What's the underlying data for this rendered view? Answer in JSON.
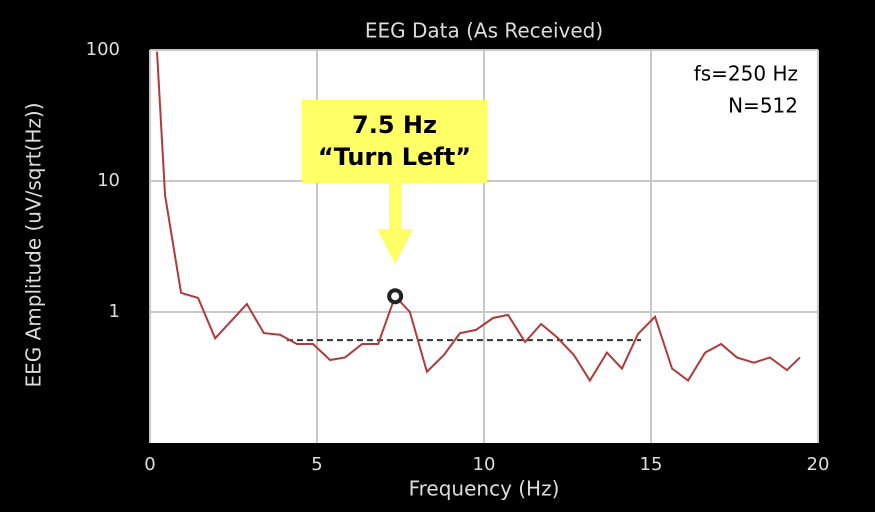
{
  "chart_data": {
    "type": "line",
    "title": "EEG Data (As Received)",
    "xlabel": "Frequency (Hz)",
    "ylabel": "EEG Amplitude (uV/sqrt(Hz))",
    "annotations": [
      "fs=250 Hz",
      "N=512"
    ],
    "callout": {
      "lines": [
        "7.5 Hz",
        "“Turn Left”"
      ],
      "color": "#ffff66"
    },
    "x": [
      0.21,
      0.45,
      0.93,
      1.44,
      1.95,
      2.9,
      3.41,
      3.89,
      4.4,
      4.88,
      5.39,
      5.84,
      6.35,
      6.83,
      7.34,
      7.78,
      8.29,
      8.8,
      9.28,
      9.76,
      10.27,
      10.72,
      11.23,
      11.71,
      12.19,
      12.69,
      13.17,
      13.68,
      14.13,
      14.61,
      15.12,
      15.63,
      16.11,
      16.62,
      17.1,
      17.57,
      18.08,
      18.56,
      19.07,
      19.46
    ],
    "series": [
      {
        "color": "#b03a3a",
        "values": [
          97,
          7.8,
          1.4,
          1.28,
          0.63,
          1.15,
          0.69,
          0.67,
          0.57,
          0.57,
          0.43,
          0.45,
          0.57,
          0.57,
          1.32,
          1.0,
          0.35,
          0.47,
          0.69,
          0.73,
          0.9,
          0.95,
          0.59,
          0.81,
          0.64,
          0.47,
          0.3,
          0.49,
          0.37,
          0.68,
          0.92,
          0.37,
          0.3,
          0.49,
          0.57,
          0.45,
          0.41,
          0.45,
          0.36,
          0.45
        ]
      }
    ],
    "reference_line": {
      "y": 0.61,
      "x": [
        4.1,
        14.7
      ]
    },
    "xlim": [
      0,
      20
    ],
    "xticks": [
      0,
      5,
      10,
      15,
      20
    ],
    "ylim": [
      0.1,
      100
    ],
    "yticks": [
      1,
      10,
      100
    ],
    "yscale": "log",
    "grid": true
  }
}
